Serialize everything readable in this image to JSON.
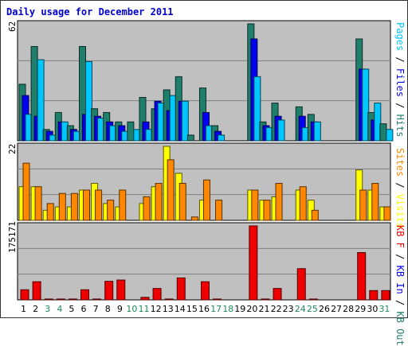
{
  "chart_data": {
    "type": "bar",
    "title": "Daily usage for December 2011",
    "categories": [
      "1",
      "2",
      "3",
      "4",
      "5",
      "6",
      "7",
      "8",
      "9",
      "10",
      "11",
      "12",
      "13",
      "14",
      "15",
      "16",
      "17",
      "18",
      "19",
      "20",
      "21",
      "22",
      "23",
      "24",
      "25",
      "26",
      "27",
      "28",
      "29",
      "30",
      "31"
    ],
    "weekend_days": [
      "3",
      "4",
      "10",
      "11",
      "17",
      "18",
      "24",
      "25",
      "31"
    ],
    "panels": [
      {
        "name": "pages_files_hits",
        "max_label": "62",
        "ylabel_parts": [
          {
            "text": "Pages",
            "color": "#00c8ff"
          },
          {
            "text": " / ",
            "color": "#000000"
          },
          {
            "text": "Files",
            "color": "#0000ee"
          },
          {
            "text": " / ",
            "color": "#000000"
          },
          {
            "text": "Hits",
            "color": "#1f7f6a"
          }
        ],
        "max": 62,
        "series": [
          {
            "name": "Hits",
            "color": "#1f7f6a",
            "values": [
              30,
              50,
              6,
              15,
              8,
              50,
              17,
              15,
              10,
              10,
              23,
              17,
              27,
              34,
              3,
              28,
              8,
              0,
              0,
              62,
              10,
              20,
              0,
              18,
              14,
              0,
              0,
              0,
              54,
              15,
              9
            ]
          },
          {
            "name": "Files",
            "color": "#0000ee",
            "values": [
              24,
              13,
              5,
              10,
              6,
              14,
              13,
              10,
              8,
              0,
              10,
              21,
              16,
              21,
              0,
              15,
              5,
              0,
              0,
              54,
              8,
              13,
              0,
              13,
              10,
              0,
              0,
              0,
              38,
              11,
              0
            ]
          },
          {
            "name": "Pages",
            "color": "#00c8ff",
            "values": [
              14,
              43,
              3,
              10,
              5,
              42,
              12,
              8,
              5,
              6,
              6,
              20,
              24,
              21,
              0,
              8,
              3,
              0,
              0,
              34,
              7,
              11,
              0,
              7,
              10,
              0,
              0,
              0,
              38,
              20,
              6
            ]
          }
        ]
      },
      {
        "name": "visits_sites",
        "max_label": "22",
        "ylabel_parts": [
          {
            "text": "Sites",
            "color": "#ff8800"
          },
          {
            "text": " / ",
            "color": "#000000"
          },
          {
            "text": "Visits",
            "color": "#ffff00"
          }
        ],
        "max": 22,
        "series": [
          {
            "name": "Visits",
            "color": "#ffff00",
            "values": [
              10,
              10,
              3,
              4,
              4,
              9,
              11,
              5,
              4,
              0,
              5,
              10,
              22,
              14,
              0,
              6,
              0,
              0,
              0,
              9,
              6,
              7,
              0,
              9,
              6,
              0,
              0,
              0,
              15,
              9,
              4
            ]
          },
          {
            "name": "Sites",
            "color": "#ff8800",
            "values": [
              17,
              10,
              5,
              8,
              8,
              9,
              9,
              6,
              9,
              0,
              7,
              11,
              18,
              11,
              1,
              12,
              6,
              0,
              0,
              9,
              6,
              11,
              0,
              10,
              3,
              0,
              0,
              0,
              9,
              11,
              4
            ]
          }
        ]
      },
      {
        "name": "kb",
        "max_label": "175171",
        "ylabel_parts": [
          {
            "text": "KB F",
            "color": "#ee0000"
          },
          {
            "text": " / ",
            "color": "#000000"
          },
          {
            "text": "KB In",
            "color": "#0000ee"
          },
          {
            "text": " / ",
            "color": "#000000"
          },
          {
            "text": "KB Out",
            "color": "#1f7f6a"
          }
        ],
        "max": 175171,
        "series": [
          {
            "name": "KB F",
            "color": "#ee0000",
            "values": [
              24000,
              43000,
              2000,
              2000,
              2000,
              24000,
              2000,
              44000,
              47000,
              0,
              6000,
              27000,
              2000,
              52000,
              0,
              43000,
              2000,
              0,
              0,
              175171,
              2000,
              27000,
              0,
              74000,
              2000,
              0,
              0,
              0,
              112000,
              22000,
              22000
            ]
          }
        ]
      }
    ]
  }
}
